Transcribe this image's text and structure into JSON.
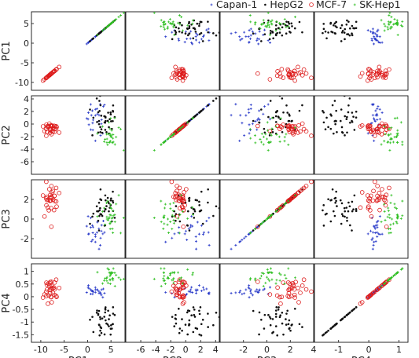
{
  "chart_data": {
    "type": "scatter-matrix",
    "title": "",
    "variables": [
      "PC1",
      "PC2",
      "PC3",
      "PC4"
    ],
    "ranges": {
      "PC1": [
        -12,
        8
      ],
      "PC2": [
        -8,
        4.5
      ],
      "PC3": [
        -4,
        4
      ],
      "PC4": [
        -1.8,
        1.3
      ]
    },
    "ticks": {
      "PC1": [
        -10,
        -5,
        0,
        5
      ],
      "PC2": [
        -6,
        -4,
        -2,
        0,
        2,
        4
      ],
      "PC3": [
        -2,
        0,
        2,
        4
      ],
      "PC4": [
        -1,
        0,
        1
      ]
    },
    "row_ticks": {
      "PC1": [
        5,
        0,
        -5,
        -10
      ],
      "PC2": [
        4,
        2,
        0,
        -2,
        -4,
        -6
      ],
      "PC3": [
        2,
        0,
        -2
      ],
      "PC4": [
        1,
        0.5,
        0,
        -0.5,
        -1,
        -1.5
      ]
    },
    "legend": {
      "placement": "top-right",
      "entries": [
        "Capan-1",
        "HepG2",
        "MCF-7",
        "SK-Hep1"
      ]
    },
    "series": [
      {
        "name": "Capan-1",
        "marker": "plus",
        "color": "#2536c8",
        "center": [
          2.0,
          1.0,
          -1.2,
          0.2
        ],
        "spread": [
          1.1,
          1.4,
          0.9,
          0.12
        ],
        "count": 25
      },
      {
        "name": "HepG2",
        "marker": "dot",
        "color": "#111111",
        "center": [
          3.5,
          0.6,
          0.9,
          -1.0
        ],
        "spread": [
          1.3,
          1.6,
          1.0,
          0.35
        ],
        "count": 40
      },
      {
        "name": "MCF-7",
        "marker": "circle",
        "color": "#dd1b1b",
        "center": [
          -7.8,
          -0.6,
          2.0,
          0.3
        ],
        "spread": [
          1.0,
          0.6,
          0.8,
          0.25
        ],
        "count": 32
      },
      {
        "name": "SK-Hep1",
        "marker": "plus",
        "color": "#2fbf22",
        "center": [
          5.0,
          -1.8,
          0.2,
          0.8
        ],
        "spread": [
          1.0,
          1.2,
          0.8,
          0.18
        ],
        "count": 32
      }
    ]
  }
}
